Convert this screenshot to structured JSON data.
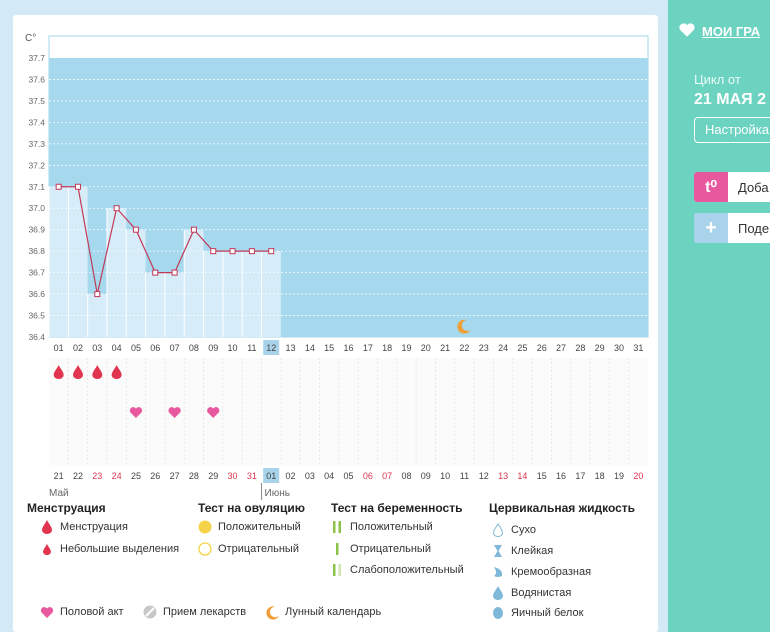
{
  "chart_data": {
    "type": "line",
    "y_unit": "C°",
    "ylim": [
      36.4,
      37.7
    ],
    "y_ticks": [
      "36.4",
      "36.5",
      "36.6",
      "36.7",
      "36.8",
      "36.9",
      "37.0",
      "37.1",
      "37.2",
      "37.3",
      "37.4",
      "37.5",
      "37.6",
      "37.7"
    ],
    "cycle_days": [
      "01",
      "02",
      "03",
      "04",
      "05",
      "06",
      "07",
      "08",
      "09",
      "10",
      "11",
      "12",
      "13",
      "14",
      "15",
      "16",
      "17",
      "18",
      "19",
      "20",
      "21",
      "22",
      "23",
      "24",
      "25",
      "26",
      "27",
      "28",
      "29",
      "30",
      "31"
    ],
    "current_day": "12",
    "temperature": [
      37.1,
      37.1,
      36.6,
      37.0,
      36.9,
      36.7,
      36.7,
      36.9,
      36.8,
      36.8,
      36.8,
      36.8
    ],
    "menstruation_days": [
      "01",
      "02",
      "03",
      "04"
    ],
    "intercourse_days": [
      "05",
      "07",
      "09"
    ],
    "moon_day": "22",
    "calendar_dates": [
      "21",
      "22",
      "23",
      "24",
      "25",
      "26",
      "27",
      "28",
      "29",
      "30",
      "31",
      "01",
      "02",
      "03",
      "04",
      "05",
      "06",
      "07",
      "08",
      "09",
      "10",
      "11",
      "12",
      "13",
      "14",
      "15",
      "16",
      "17",
      "18",
      "19",
      "20"
    ],
    "weekend_dates_idx": [
      2,
      3,
      9,
      10,
      16,
      17,
      23,
      24,
      30
    ],
    "today_date_idx": 11,
    "month_start": "Май",
    "month_next": "Июнь",
    "colors": {
      "plot_bg": "#a6d8ee",
      "past_bg": "#d6ecf8",
      "line": "#c23a57",
      "menstruation": "#e0344f",
      "intercourse": "#e8589e",
      "moon": "#f0a03a",
      "weekend": "#e0344f",
      "today_bg": "#a9d3ea"
    }
  },
  "legend": {
    "menstruation": {
      "title": "Менструация",
      "items": [
        "Менструация",
        "Небольшие выделения"
      ]
    },
    "ovulation_test": {
      "title": "Тест на овуляцию",
      "items": [
        "Положительный",
        "Отрицательный"
      ]
    },
    "pregnancy_test": {
      "title": "Тест на беременность",
      "items": [
        "Положительный",
        "Отрицательный",
        "Слабоположительный"
      ]
    },
    "cervical": {
      "title": "Цервикальная жидкость",
      "items": [
        "Сухо",
        "Клейкая",
        "Кремообразная",
        "Водянистая",
        "Яичный белок"
      ]
    },
    "bottom": [
      "Половой акт",
      "Прием лекарств",
      "Лунный календарь"
    ]
  },
  "sidebar": {
    "title": "МОИ ГРА",
    "cycle_label": "Цикл от",
    "cycle_date": "21 МАЯ 2",
    "settings_button": "Настройка",
    "add_temp_icon": "t⁰",
    "add_temp_label": "Доба",
    "share_label": "Поде"
  }
}
